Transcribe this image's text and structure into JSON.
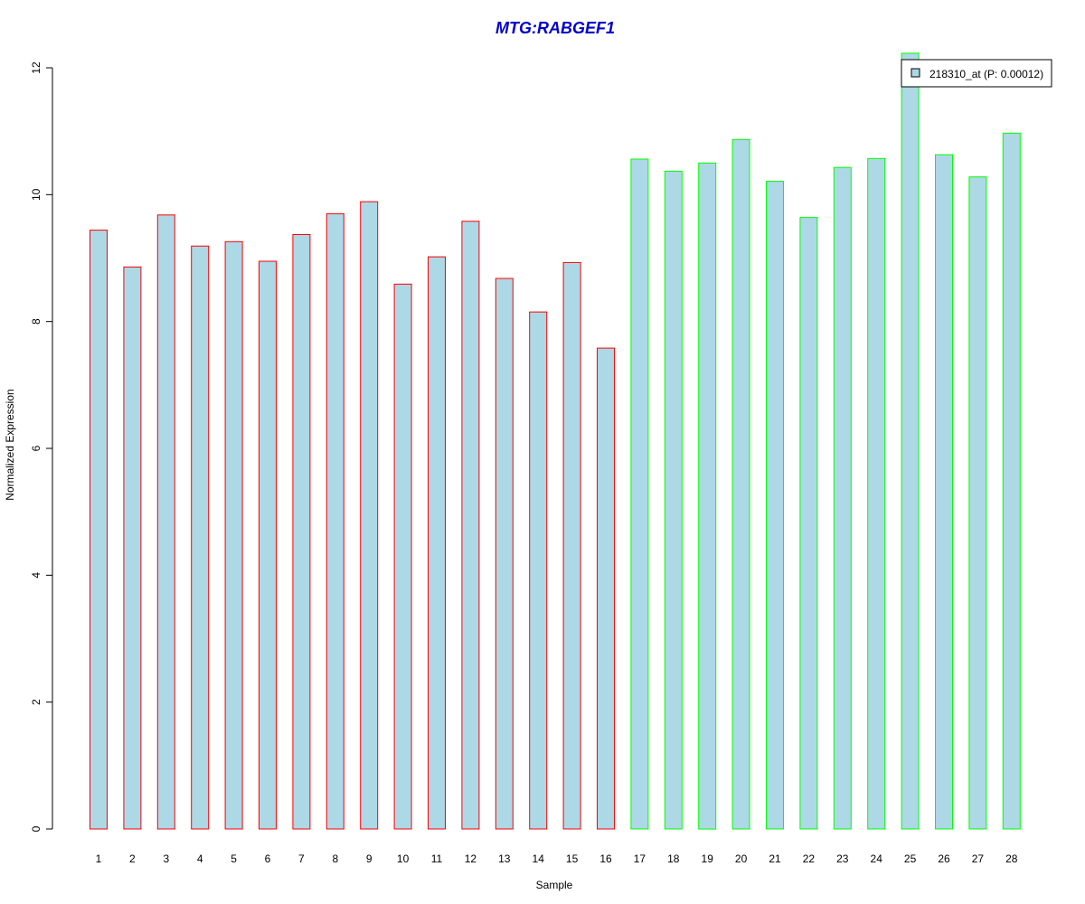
{
  "chart_data": {
    "type": "bar",
    "title": "MTG:RABGEF1",
    "xlabel": "Sample",
    "ylabel": "Normalized Expression",
    "ylim": [
      0,
      12
    ],
    "yticks": [
      0,
      2,
      4,
      6,
      8,
      10,
      12
    ],
    "categories": [
      "1",
      "2",
      "3",
      "4",
      "5",
      "6",
      "7",
      "8",
      "9",
      "10",
      "11",
      "12",
      "13",
      "14",
      "15",
      "16",
      "17",
      "18",
      "19",
      "20",
      "21",
      "22",
      "23",
      "24",
      "25",
      "26",
      "27",
      "28"
    ],
    "series": [
      {
        "name": "218310_at (P: 0.00012)",
        "values": [
          9.44,
          8.86,
          9.68,
          9.19,
          9.26,
          8.95,
          9.37,
          9.7,
          9.89,
          8.59,
          9.02,
          9.58,
          8.68,
          8.15,
          8.93,
          7.58,
          10.56,
          10.37,
          10.5,
          10.87,
          10.21,
          9.64,
          10.43,
          10.57,
          12.23,
          10.63,
          10.28,
          10.97
        ],
        "fill_color": "#add8e6",
        "outline_colors": [
          "#ff0000",
          "#ff0000",
          "#ff0000",
          "#ff0000",
          "#ff0000",
          "#ff0000",
          "#ff0000",
          "#ff0000",
          "#ff0000",
          "#ff0000",
          "#ff0000",
          "#ff0000",
          "#ff0000",
          "#ff0000",
          "#ff0000",
          "#ff0000",
          "#00ff00",
          "#00ff00",
          "#00ff00",
          "#00ff00",
          "#00ff00",
          "#00ff00",
          "#00ff00",
          "#00ff00",
          "#00ff00",
          "#00ff00",
          "#00ff00",
          "#00ff00"
        ]
      }
    ],
    "legend": {
      "placement": "top-right",
      "label": "218310_at (P: 0.00012)"
    },
    "grid": false,
    "title_color": "#0000cd"
  }
}
